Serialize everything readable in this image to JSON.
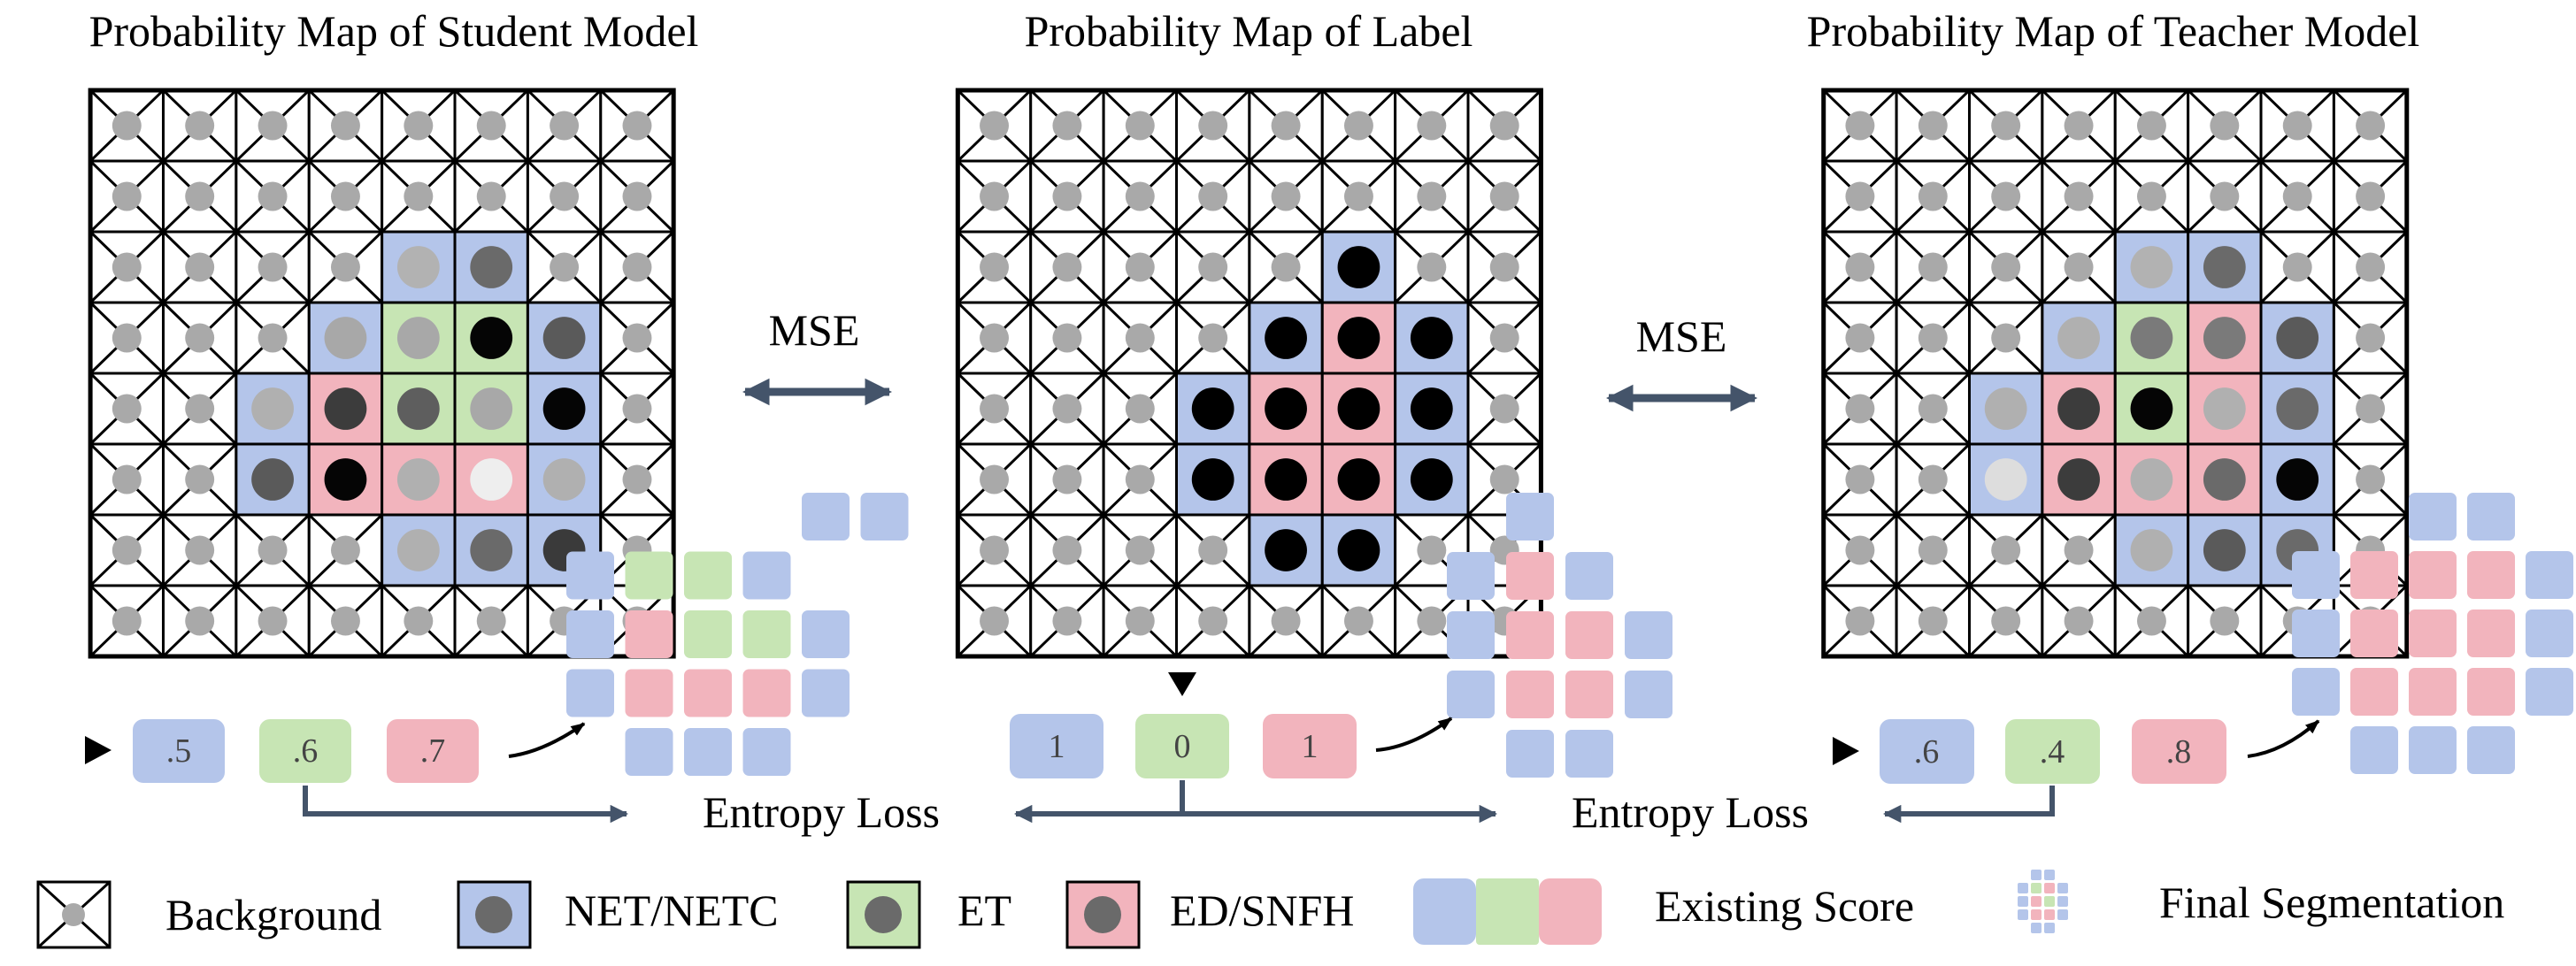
{
  "panels": [
    {
      "id": "student",
      "title": "Probability Map of Student Model",
      "cells": [
        {
          "r": 2,
          "c": 4,
          "cls": "net",
          "shade": "#b2b2b2"
        },
        {
          "r": 2,
          "c": 5,
          "cls": "net",
          "shade": "#6a6a6a"
        },
        {
          "r": 3,
          "c": 3,
          "cls": "net",
          "shade": "#a8a8a8"
        },
        {
          "r": 3,
          "c": 4,
          "cls": "et",
          "shade": "#a8a8a8"
        },
        {
          "r": 3,
          "c": 5,
          "cls": "et",
          "shade": "#050505"
        },
        {
          "r": 3,
          "c": 6,
          "cls": "net",
          "shade": "#5a5a5a"
        },
        {
          "r": 4,
          "c": 2,
          "cls": "net",
          "shade": "#b0b0b0"
        },
        {
          "r": 4,
          "c": 3,
          "cls": "ed",
          "shade": "#3c3c3c"
        },
        {
          "r": 4,
          "c": 4,
          "cls": "et",
          "shade": "#5e5e5e"
        },
        {
          "r": 4,
          "c": 5,
          "cls": "et",
          "shade": "#a8a8a8"
        },
        {
          "r": 4,
          "c": 6,
          "cls": "net",
          "shade": "#050505"
        },
        {
          "r": 5,
          "c": 2,
          "cls": "net",
          "shade": "#5a5a5a"
        },
        {
          "r": 5,
          "c": 3,
          "cls": "ed",
          "shade": "#050505"
        },
        {
          "r": 5,
          "c": 4,
          "cls": "ed",
          "shade": "#b0b0b0"
        },
        {
          "r": 5,
          "c": 5,
          "cls": "ed",
          "shade": "#eeeeee"
        },
        {
          "r": 5,
          "c": 6,
          "cls": "net",
          "shade": "#b0b0b0"
        },
        {
          "r": 6,
          "c": 4,
          "cls": "net",
          "shade": "#b0b0b0"
        },
        {
          "r": 6,
          "c": 5,
          "cls": "net",
          "shade": "#6a6a6a"
        },
        {
          "r": 6,
          "c": 6,
          "cls": "net",
          "shade": "#3a3a3a"
        }
      ],
      "scores": [
        ".5",
        ".6",
        ".7"
      ]
    },
    {
      "id": "label",
      "title": "Probability Map of Label",
      "cells": [
        {
          "r": 2,
          "c": 5,
          "cls": "net",
          "shade": "#000000"
        },
        {
          "r": 3,
          "c": 4,
          "cls": "net",
          "shade": "#000000"
        },
        {
          "r": 3,
          "c": 5,
          "cls": "ed",
          "shade": "#000000"
        },
        {
          "r": 3,
          "c": 6,
          "cls": "net",
          "shade": "#000000"
        },
        {
          "r": 4,
          "c": 3,
          "cls": "net",
          "shade": "#000000"
        },
        {
          "r": 4,
          "c": 4,
          "cls": "ed",
          "shade": "#000000"
        },
        {
          "r": 4,
          "c": 5,
          "cls": "ed",
          "shade": "#000000"
        },
        {
          "r": 4,
          "c": 6,
          "cls": "net",
          "shade": "#000000"
        },
        {
          "r": 5,
          "c": 3,
          "cls": "net",
          "shade": "#000000"
        },
        {
          "r": 5,
          "c": 4,
          "cls": "ed",
          "shade": "#000000"
        },
        {
          "r": 5,
          "c": 5,
          "cls": "ed",
          "shade": "#000000"
        },
        {
          "r": 5,
          "c": 6,
          "cls": "net",
          "shade": "#000000"
        },
        {
          "r": 6,
          "c": 4,
          "cls": "net",
          "shade": "#000000"
        },
        {
          "r": 6,
          "c": 5,
          "cls": "net",
          "shade": "#000000"
        }
      ],
      "scores": [
        "1",
        "0",
        "1"
      ]
    },
    {
      "id": "teacher",
      "title": "Probability Map of Teacher Model",
      "cells": [
        {
          "r": 2,
          "c": 4,
          "cls": "net",
          "shade": "#b2b2b2"
        },
        {
          "r": 2,
          "c": 5,
          "cls": "net",
          "shade": "#6a6a6a"
        },
        {
          "r": 3,
          "c": 3,
          "cls": "net",
          "shade": "#b0b0b0"
        },
        {
          "r": 3,
          "c": 4,
          "cls": "et",
          "shade": "#7a7a7a"
        },
        {
          "r": 3,
          "c": 5,
          "cls": "ed",
          "shade": "#7a7a7a"
        },
        {
          "r": 3,
          "c": 6,
          "cls": "net",
          "shade": "#5a5a5a"
        },
        {
          "r": 4,
          "c": 2,
          "cls": "net",
          "shade": "#b0b0b0"
        },
        {
          "r": 4,
          "c": 3,
          "cls": "ed",
          "shade": "#3c3c3c"
        },
        {
          "r": 4,
          "c": 4,
          "cls": "et",
          "shade": "#050505"
        },
        {
          "r": 4,
          "c": 5,
          "cls": "ed",
          "shade": "#b0b0b0"
        },
        {
          "r": 4,
          "c": 6,
          "cls": "net",
          "shade": "#6a6a6a"
        },
        {
          "r": 5,
          "c": 2,
          "cls": "net",
          "shade": "#dddddd"
        },
        {
          "r": 5,
          "c": 3,
          "cls": "ed",
          "shade": "#3c3c3c"
        },
        {
          "r": 5,
          "c": 4,
          "cls": "ed",
          "shade": "#b0b0b0"
        },
        {
          "r": 5,
          "c": 5,
          "cls": "ed",
          "shade": "#6a6a6a"
        },
        {
          "r": 5,
          "c": 6,
          "cls": "net",
          "shade": "#050505"
        },
        {
          "r": 6,
          "c": 4,
          "cls": "net",
          "shade": "#b0b0b0"
        },
        {
          "r": 6,
          "c": 5,
          "cls": "net",
          "shade": "#5a5a5a"
        },
        {
          "r": 6,
          "c": 6,
          "cls": "net",
          "shade": "#6a6a6a"
        }
      ],
      "scores": [
        ".6",
        ".4",
        ".8"
      ]
    }
  ],
  "connectors": {
    "mse_label": "MSE",
    "entropy_loss_label": "Entropy Loss"
  },
  "segmentations": [
    {
      "id": "student",
      "rows": [
        [
          "",
          "",
          "",
          "",
          "n",
          "n",
          ""
        ],
        [
          "n",
          "e",
          "e",
          "n",
          "",
          "",
          ""
        ],
        [
          "n",
          "d",
          "e",
          "e",
          "n",
          "",
          ""
        ],
        [
          "n",
          "d",
          "d",
          "d",
          "n",
          "",
          ""
        ],
        [
          "",
          "n",
          "n",
          "n",
          "",
          "",
          ""
        ]
      ]
    },
    {
      "id": "label",
      "rows": [
        [
          "",
          "n",
          "",
          ""
        ],
        [
          "n",
          "d",
          "n",
          ""
        ],
        [
          "n",
          "d",
          "d",
          "n"
        ],
        [
          "n",
          "d",
          "d",
          "n"
        ],
        [
          "",
          "n",
          "n",
          ""
        ]
      ]
    },
    {
      "id": "teacher",
      "rows": [
        [
          "",
          "",
          "n",
          "n",
          ""
        ],
        [
          "n",
          "d",
          "d",
          "d",
          "n"
        ],
        [
          "n",
          "d",
          "d",
          "d",
          "n"
        ],
        [
          "n",
          "d",
          "d",
          "d",
          "n"
        ],
        [
          "",
          "n",
          "n",
          "n",
          ""
        ]
      ]
    }
  ],
  "legend": {
    "background": "Background",
    "net": "NET/NETC",
    "et": "ET",
    "ed": "ED/SNFH",
    "existing_score": "Existing Score",
    "final_segmentation": "Final Segmentation"
  },
  "colors": {
    "net": "#b4c5ea",
    "et": "#c7e5b4",
    "ed": "#f2b4bd",
    "arrow": "#44546a",
    "bg_dot": "#a9a9a9",
    "grid": "#000000"
  }
}
